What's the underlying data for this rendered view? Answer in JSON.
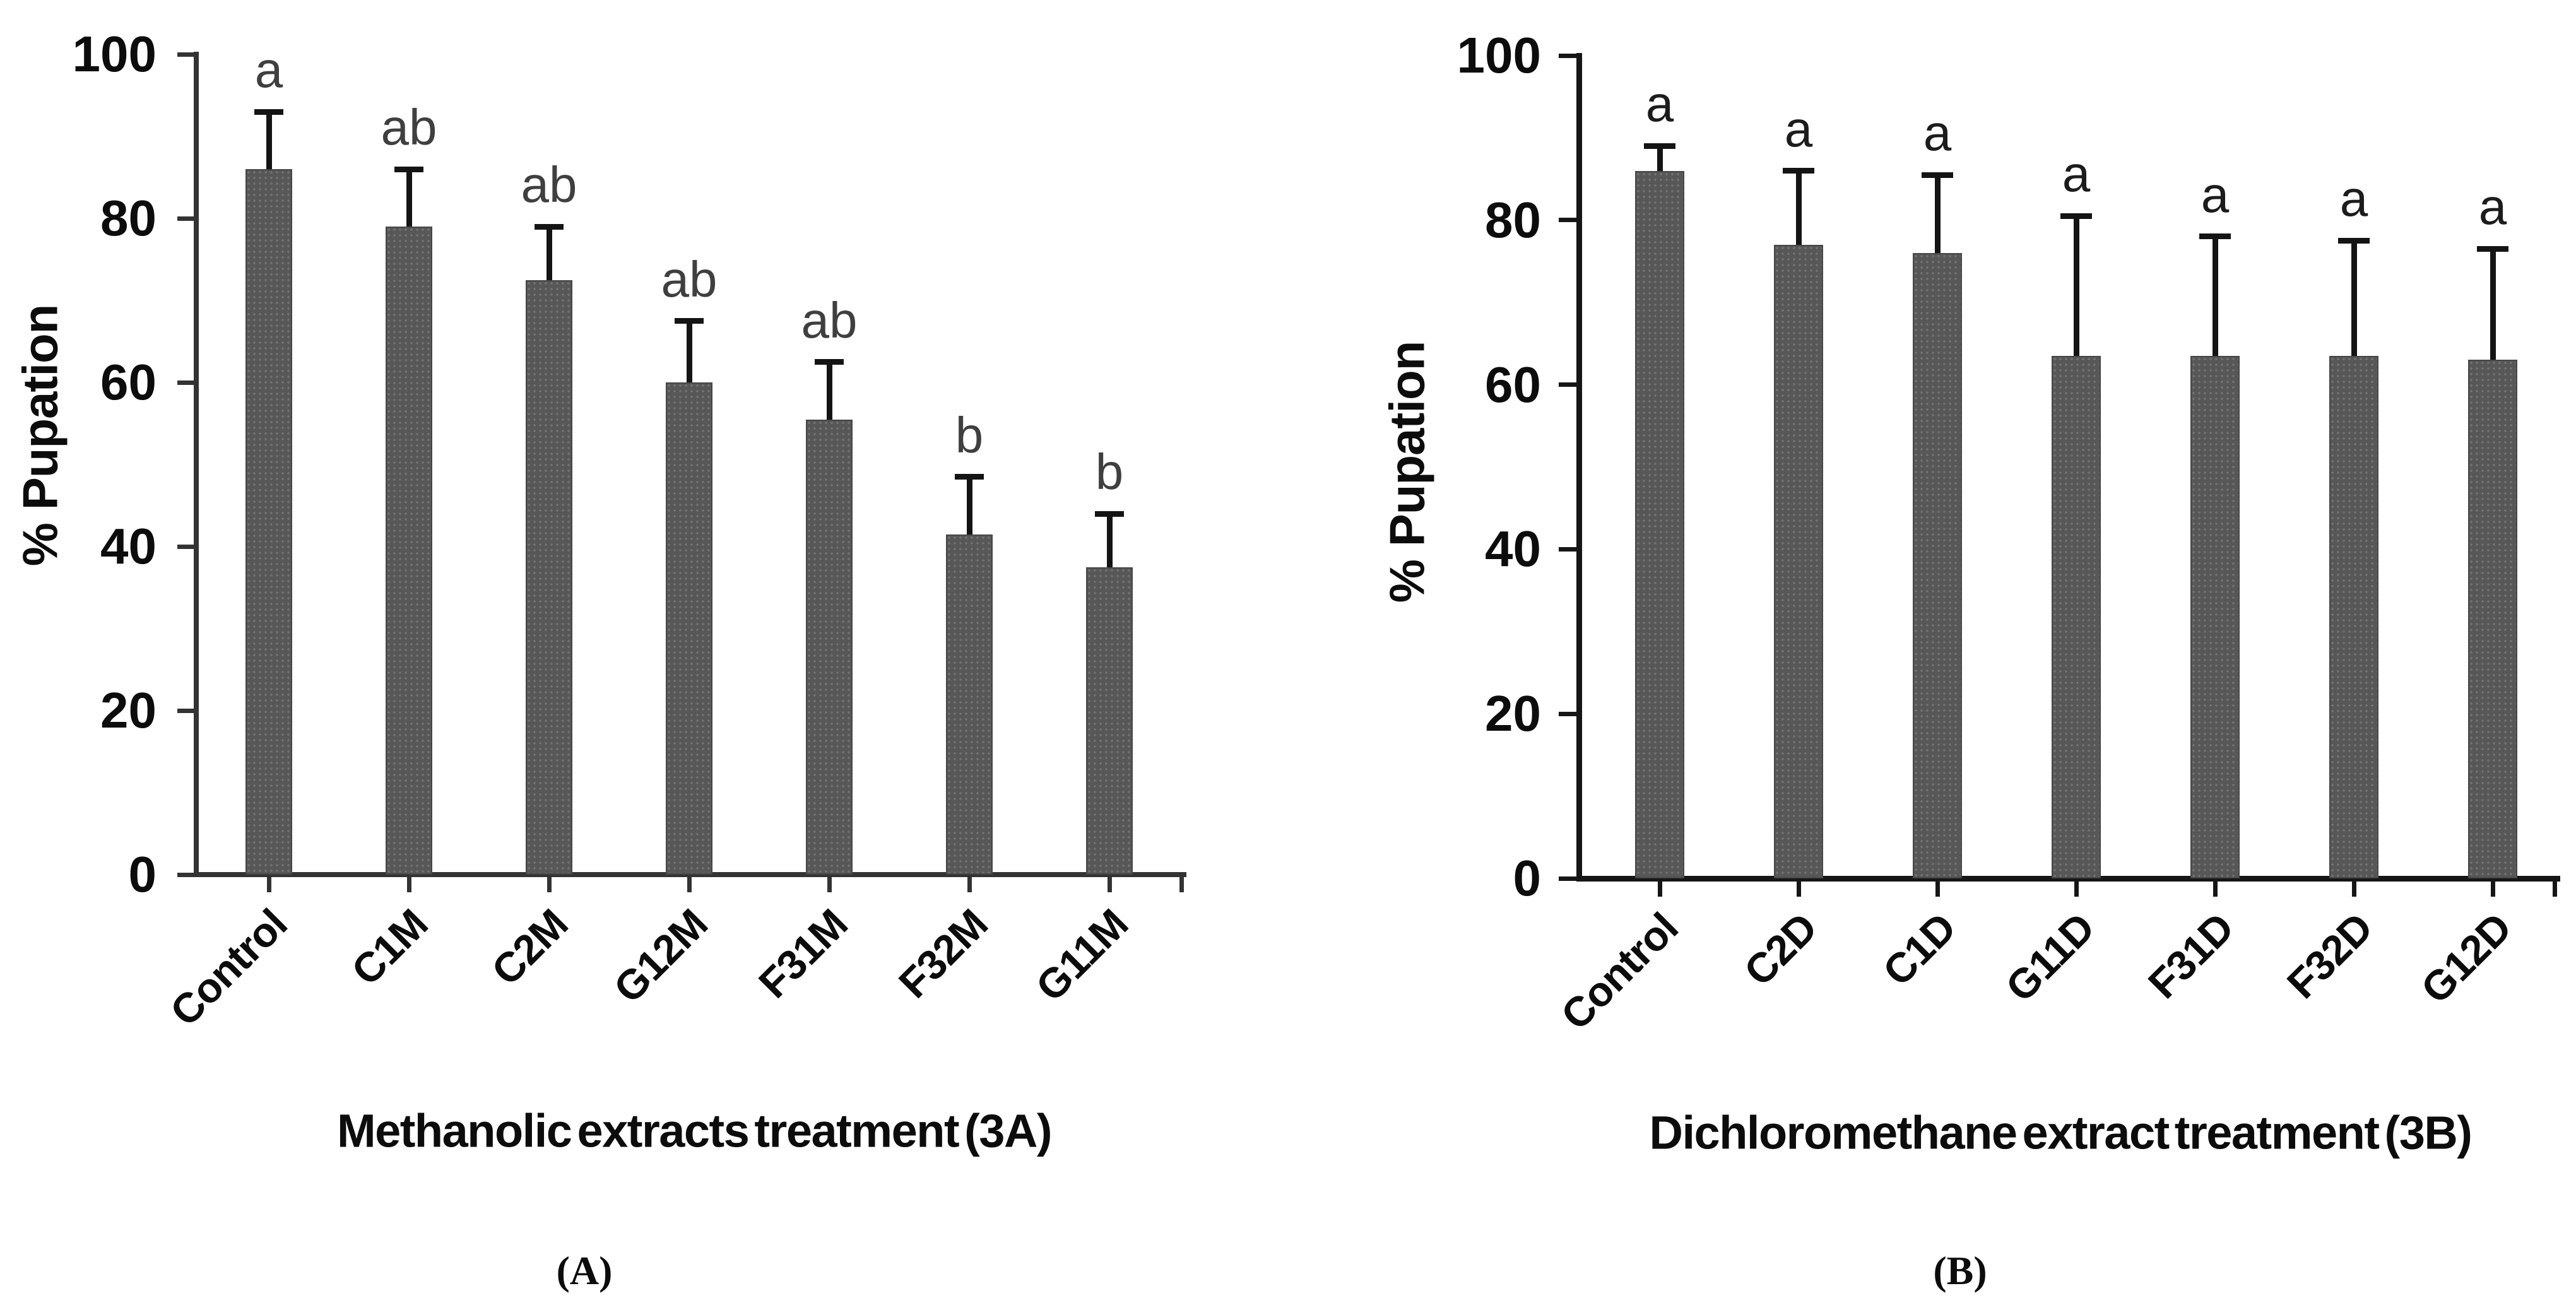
{
  "figure": {
    "captions": {
      "a": "(A)",
      "b": "(B)"
    },
    "colors": {
      "background": "#ffffff",
      "bar_fill": "#575757",
      "bar_border": "#474747",
      "error_bar": "#141414"
    }
  },
  "chart_data": [
    {
      "type": "bar",
      "panel": "A",
      "title": "Methanolic extracts treatment (3A)",
      "ylabel": "% Pupation",
      "categories": [
        "Control",
        "C1M",
        "C2M",
        "G12M",
        "F31M",
        "F32M",
        "G11M"
      ],
      "values": [
        86,
        79,
        72.5,
        60,
        55.5,
        41.5,
        37.5
      ],
      "error_up": [
        7,
        7,
        6.5,
        7.5,
        7,
        7,
        6.5
      ],
      "sig_letters": [
        "a",
        "ab",
        "ab",
        "ab",
        "ab",
        "b",
        "b"
      ],
      "y_ticks": [
        0,
        20,
        40,
        60,
        80,
        100
      ],
      "ylim": [
        0,
        100
      ],
      "grid": false,
      "legend": "none",
      "axis_color": "#333333",
      "letter_color": "#3f3f3f",
      "caption": "(A)"
    },
    {
      "type": "bar",
      "panel": "B",
      "title": "Dichloromethane extract treatment  (3B)",
      "ylabel": "% Pupation",
      "categories": [
        "Control",
        "C2D",
        "C1D",
        "G11D",
        "F31D",
        "F32D",
        "G12D"
      ],
      "values": [
        86,
        77,
        76,
        63.5,
        63.5,
        63.5,
        63
      ],
      "error_up": [
        3,
        9,
        9.5,
        17,
        14.5,
        14,
        13.5
      ],
      "sig_letters": [
        "a",
        "a",
        "a",
        "a",
        "a",
        "a",
        "a"
      ],
      "y_ticks": [
        0,
        20,
        40,
        60,
        80,
        100
      ],
      "ylim": [
        0,
        100
      ],
      "grid": false,
      "legend": "none",
      "axis_color": "#161616",
      "letter_color": "#1c1c1c",
      "caption": "(B)"
    }
  ]
}
